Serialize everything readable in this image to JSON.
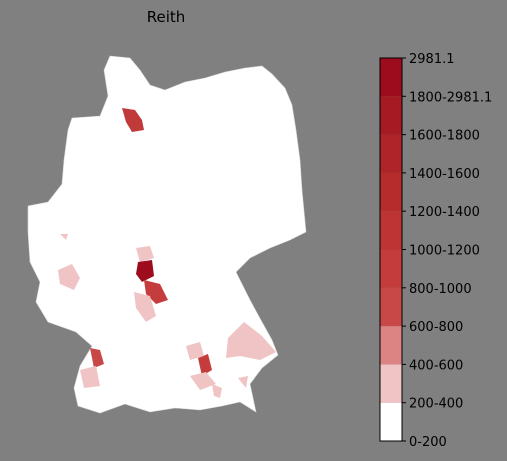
{
  "title": "Reith",
  "colorbar": {
    "ticks": [
      "0-200",
      "200-400",
      "400-600",
      "600-800",
      "800-1000",
      "1000-1200",
      "1200-1400",
      "1400-1600",
      "1600-1800",
      "1800-2981.1",
      "2981.1"
    ],
    "colors": [
      "#ffffff",
      "#f0c4c4",
      "#dc8484",
      "#c84848",
      "#c43c3c",
      "#be3434",
      "#b62c2c",
      "#ae2428",
      "#a61a24",
      "#9c0c1c"
    ]
  }
}
